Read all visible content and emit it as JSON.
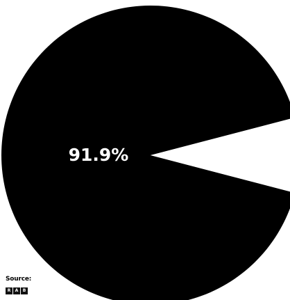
{
  "chart_data": {
    "type": "pie",
    "title": "",
    "slices": [
      {
        "label": "91.9%",
        "value": 91.9,
        "color": "#000000"
      },
      {
        "label": "",
        "value": 8.1,
        "color": "#ffffff"
      }
    ]
  },
  "source": {
    "label": "Source:",
    "logo_letters": [
      "R",
      "A",
      "B"
    ]
  }
}
